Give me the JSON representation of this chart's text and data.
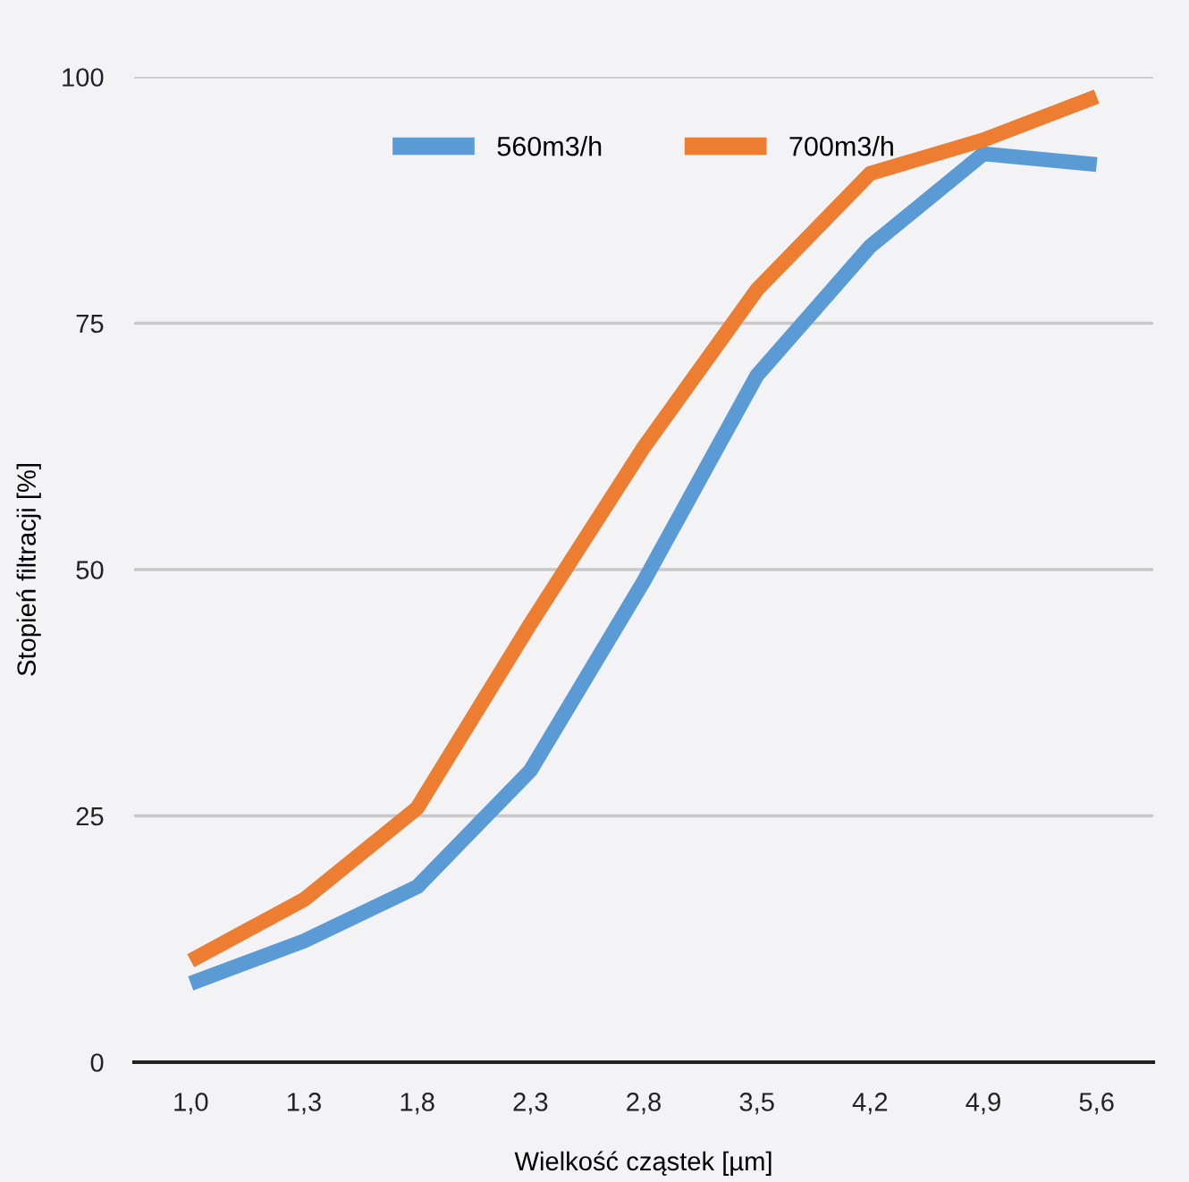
{
  "chart_data": {
    "type": "line",
    "xlabel": "Wielkość cząstek [µm]",
    "ylabel": "Stopień filtracji [%]",
    "categories": [
      "1,0",
      "1,3",
      "1,8",
      "2,3",
      "2,8",
      "3,5",
      "4,2",
      "4,9",
      "5,6"
    ],
    "series": [
      {
        "name": "560m3/h",
        "color": "#5b9bd5",
        "values": [
          8.0,
          12.3,
          17.8,
          29.6,
          48.8,
          69.7,
          82.8,
          92.2,
          91.1
        ]
      },
      {
        "name": "700m3/h",
        "color": "#ed7d31",
        "values": [
          10.3,
          16.5,
          25.8,
          44.5,
          62.4,
          78.4,
          90.2,
          93.6,
          98.0
        ]
      }
    ],
    "ylim": [
      0,
      100
    ],
    "yticks": [
      0,
      25,
      50,
      75,
      100
    ],
    "grid": "y",
    "legend": "top",
    "marker": "none",
    "line_style": "solid"
  }
}
